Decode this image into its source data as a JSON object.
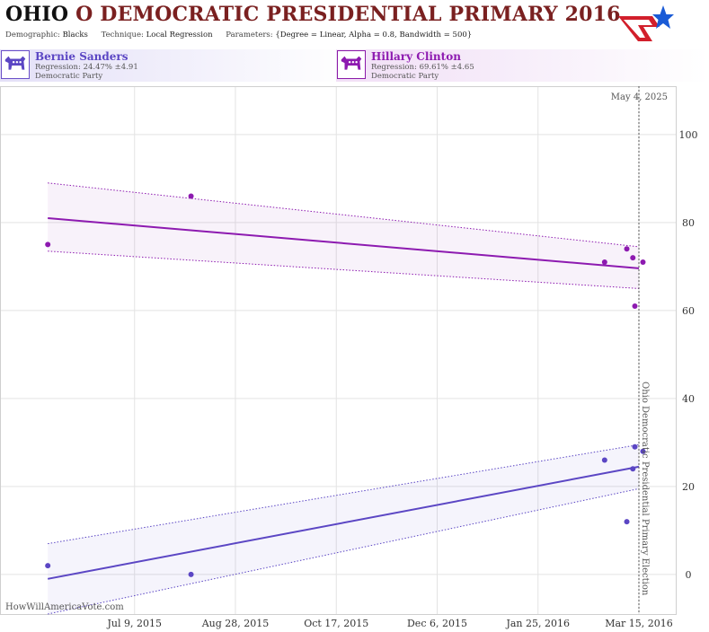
{
  "header": {
    "state": "OHIO",
    "title_rest": "O DEMOCRATIC PRESIDENTIAL PRIMARY 2016",
    "demographic_label": "Demographic:",
    "demographic": "Blacks",
    "technique_label": "Technique:",
    "technique": "Local Regression",
    "parameters_label": "Parameters:",
    "parameters": "{Degree = Linear, Alpha = 0.8, Bandwidth = 500}"
  },
  "logo": {
    "icon": "star-flag-logo-icon",
    "colors": [
      "#1a5bd6",
      "#d21f2b"
    ]
  },
  "candidates": [
    {
      "name": "Bernie Sanders",
      "regression": "Regression: 24.47% ±4.91",
      "party": "Democratic Party",
      "icon": "donkey-icon",
      "color": "#5b46c4"
    },
    {
      "name": "Hillary Clinton",
      "regression": "Regression: 69.61% ±4.65",
      "party": "Democratic Party",
      "icon": "donkey-icon",
      "color": "#8d1ab0"
    }
  ],
  "watermark": "HowWillAmericaVote.com",
  "chart_data": {
    "type": "scatter",
    "x_axis": {
      "type": "date",
      "range": [
        "2015-05-14",
        "2016-03-15"
      ],
      "tick_labels": [
        "Jul 9, 2015",
        "Aug 28, 2015",
        "Oct 17, 2015",
        "Dec 6, 2015",
        "Jan 25, 2016",
        "Mar 15, 2016"
      ],
      "tick_dates": [
        "2015-07-09",
        "2015-08-28",
        "2015-10-17",
        "2015-12-06",
        "2016-01-25",
        "2016-03-15"
      ]
    },
    "y_axis": {
      "range": [
        -9,
        111
      ],
      "ticks": [
        0,
        20,
        40,
        60,
        80,
        100
      ]
    },
    "grid": true,
    "today_label": "May 4, 2025",
    "event": {
      "date": "2016-03-15",
      "label": "Ohio Democratic Presidential Primary Election"
    },
    "series": [
      {
        "name": "Hillary Clinton",
        "color": "#8d1ab0",
        "points": [
          {
            "x": "2015-05-27",
            "y": 75
          },
          {
            "x": "2015-08-06",
            "y": 86
          },
          {
            "x": "2016-02-27",
            "y": 71
          },
          {
            "x": "2016-03-09",
            "y": 74
          },
          {
            "x": "2016-03-12",
            "y": 72
          },
          {
            "x": "2016-03-13",
            "y": 61
          },
          {
            "x": "2016-03-17",
            "y": 71
          }
        ],
        "regression": {
          "x": [
            "2015-05-27",
            "2016-03-15"
          ],
          "y": [
            81.0,
            69.6
          ],
          "upper": [
            89.0,
            74.5
          ],
          "lower": [
            73.5,
            65.0
          ]
        }
      },
      {
        "name": "Bernie Sanders",
        "color": "#5b46c4",
        "points": [
          {
            "x": "2015-05-27",
            "y": 2
          },
          {
            "x": "2015-08-06",
            "y": 0
          },
          {
            "x": "2016-02-27",
            "y": 26
          },
          {
            "x": "2016-03-09",
            "y": 12
          },
          {
            "x": "2016-03-12",
            "y": 24
          },
          {
            "x": "2016-03-13",
            "y": 29
          },
          {
            "x": "2016-03-17",
            "y": 28
          }
        ],
        "regression": {
          "x": [
            "2015-05-27",
            "2016-03-15"
          ],
          "y": [
            -1.0,
            24.5
          ],
          "upper": [
            7.0,
            29.5
          ],
          "lower": [
            -9.0,
            19.5
          ]
        }
      }
    ]
  }
}
